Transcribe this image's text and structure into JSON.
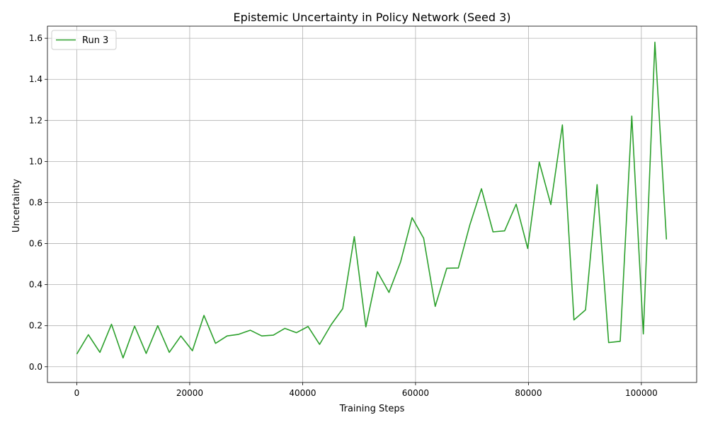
{
  "chart_data": {
    "type": "line",
    "title": "Epistemic Uncertainty in Policy Network (Seed 3)",
    "xlabel": "Training Steps",
    "ylabel": "Uncertainty",
    "xlim": [
      -5200,
      109800
    ],
    "ylim": [
      -0.0765,
      1.659
    ],
    "xticks": [
      0,
      20000,
      40000,
      60000,
      80000,
      100000
    ],
    "xtick_labels": [
      "0",
      "20000",
      "40000",
      "60000",
      "80000",
      "100000"
    ],
    "yticks": [
      0.0,
      0.2,
      0.4,
      0.6,
      0.8,
      1.0,
      1.2,
      1.4,
      1.6
    ],
    "ytick_labels": [
      "0.0",
      "0.2",
      "0.4",
      "0.6",
      "0.8",
      "1.0",
      "1.2",
      "1.4",
      "1.6"
    ],
    "grid": true,
    "legend_placement": "top-left",
    "series": [
      {
        "name": "Run 3",
        "color": "#2ca02c",
        "x": [
          0,
          2048,
          4096,
          6144,
          8192,
          10240,
          12288,
          14336,
          16384,
          18432,
          20480,
          22528,
          24576,
          26624,
          28672,
          30720,
          32768,
          34816,
          36864,
          38912,
          40960,
          43008,
          45056,
          47104,
          49152,
          51200,
          53248,
          55296,
          57344,
          59392,
          61440,
          63488,
          65536,
          67584,
          69632,
          71680,
          73728,
          75776,
          77824,
          79872,
          81920,
          83968,
          86016,
          88064,
          90112,
          92160,
          94208,
          96256,
          98304,
          100352,
          102400,
          104448
        ],
        "y": [
          0.062,
          0.156,
          0.07,
          0.207,
          0.043,
          0.198,
          0.065,
          0.2,
          0.07,
          0.15,
          0.078,
          0.25,
          0.114,
          0.15,
          0.158,
          0.178,
          0.15,
          0.154,
          0.187,
          0.166,
          0.196,
          0.109,
          0.205,
          0.283,
          0.634,
          0.194,
          0.463,
          0.362,
          0.51,
          0.726,
          0.626,
          0.294,
          0.48,
          0.481,
          0.692,
          0.867,
          0.657,
          0.662,
          0.792,
          0.576,
          0.997,
          0.79,
          1.178,
          0.228,
          0.277,
          0.887,
          0.118,
          0.124,
          1.221,
          0.16,
          1.581,
          0.62
        ]
      }
    ]
  }
}
